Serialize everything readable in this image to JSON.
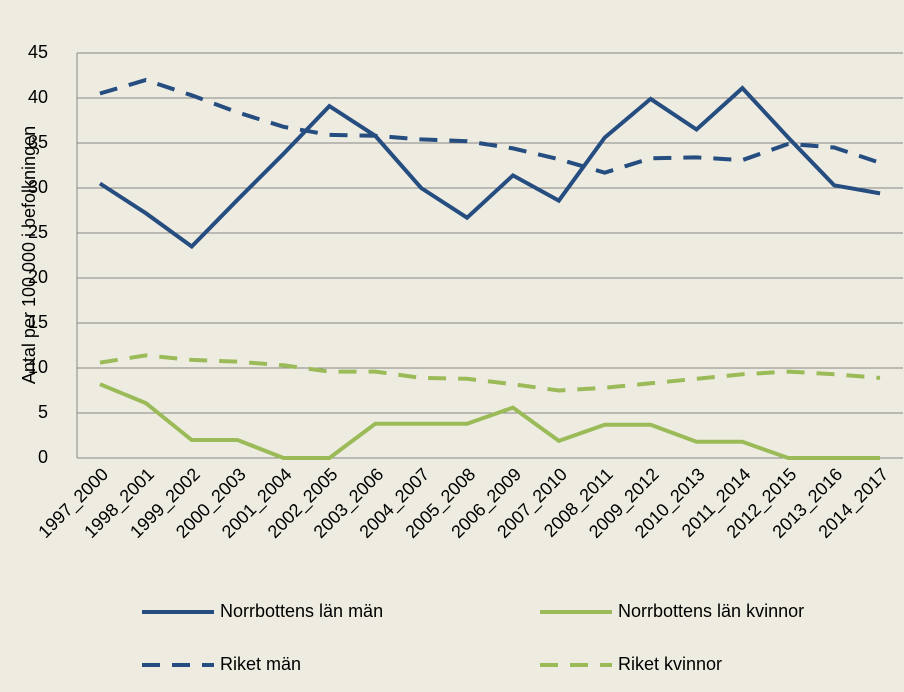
{
  "chart_data": {
    "type": "line",
    "y_label": "Antal per 100 000 i befolkningen",
    "categories": [
      "1997_2000",
      "1998_2001",
      "1999_2002",
      "2000_2003",
      "2001_2004",
      "2002_2005",
      "2003_2006",
      "2004_2007",
      "2005_2008",
      "2006_2009",
      "2007_2010",
      "2008_2011",
      "2009_2012",
      "2010_2013",
      "2011_2014",
      "2012_2015",
      "2013_2016",
      "2014_2017"
    ],
    "series": [
      {
        "name": "Norrbottens län män",
        "color": "#254d80",
        "dash": false,
        "values": [
          30.5,
          27.2,
          23.5,
          28.7,
          33.8,
          39.1,
          35.8,
          30.0,
          26.7,
          31.4,
          28.6,
          35.6,
          39.9,
          36.5,
          41.1,
          35.6,
          30.3,
          29.4
        ]
      },
      {
        "name": "Norrbottens län kvinnor",
        "color": "#9bbb59",
        "dash": false,
        "values": [
          8.2,
          6.1,
          2.0,
          2.0,
          0,
          0,
          3.8,
          3.8,
          3.8,
          5.6,
          1.9,
          3.7,
          3.7,
          1.8,
          1.8,
          0,
          0,
          0
        ]
      },
      {
        "name": "Riket män",
        "color": "#254d80",
        "dash": true,
        "values": [
          40.5,
          42.0,
          40.3,
          38.4,
          36.8,
          35.9,
          35.8,
          35.4,
          35.2,
          34.4,
          33.2,
          31.7,
          33.3,
          33.4,
          33.1,
          34.9,
          34.5,
          32.8
        ]
      },
      {
        "name": "Riket kvinnor",
        "color": "#9bbb59",
        "dash": true,
        "values": [
          10.6,
          11.4,
          10.9,
          10.7,
          10.3,
          9.6,
          9.6,
          8.9,
          8.8,
          8.2,
          7.5,
          7.8,
          8.3,
          8.8,
          9.3,
          9.6,
          9.3,
          8.9
        ]
      }
    ],
    "ylim": [
      0,
      45
    ],
    "yticks": [
      0,
      5,
      10,
      15,
      20,
      25,
      30,
      35,
      40,
      45
    ],
    "grid": true
  }
}
